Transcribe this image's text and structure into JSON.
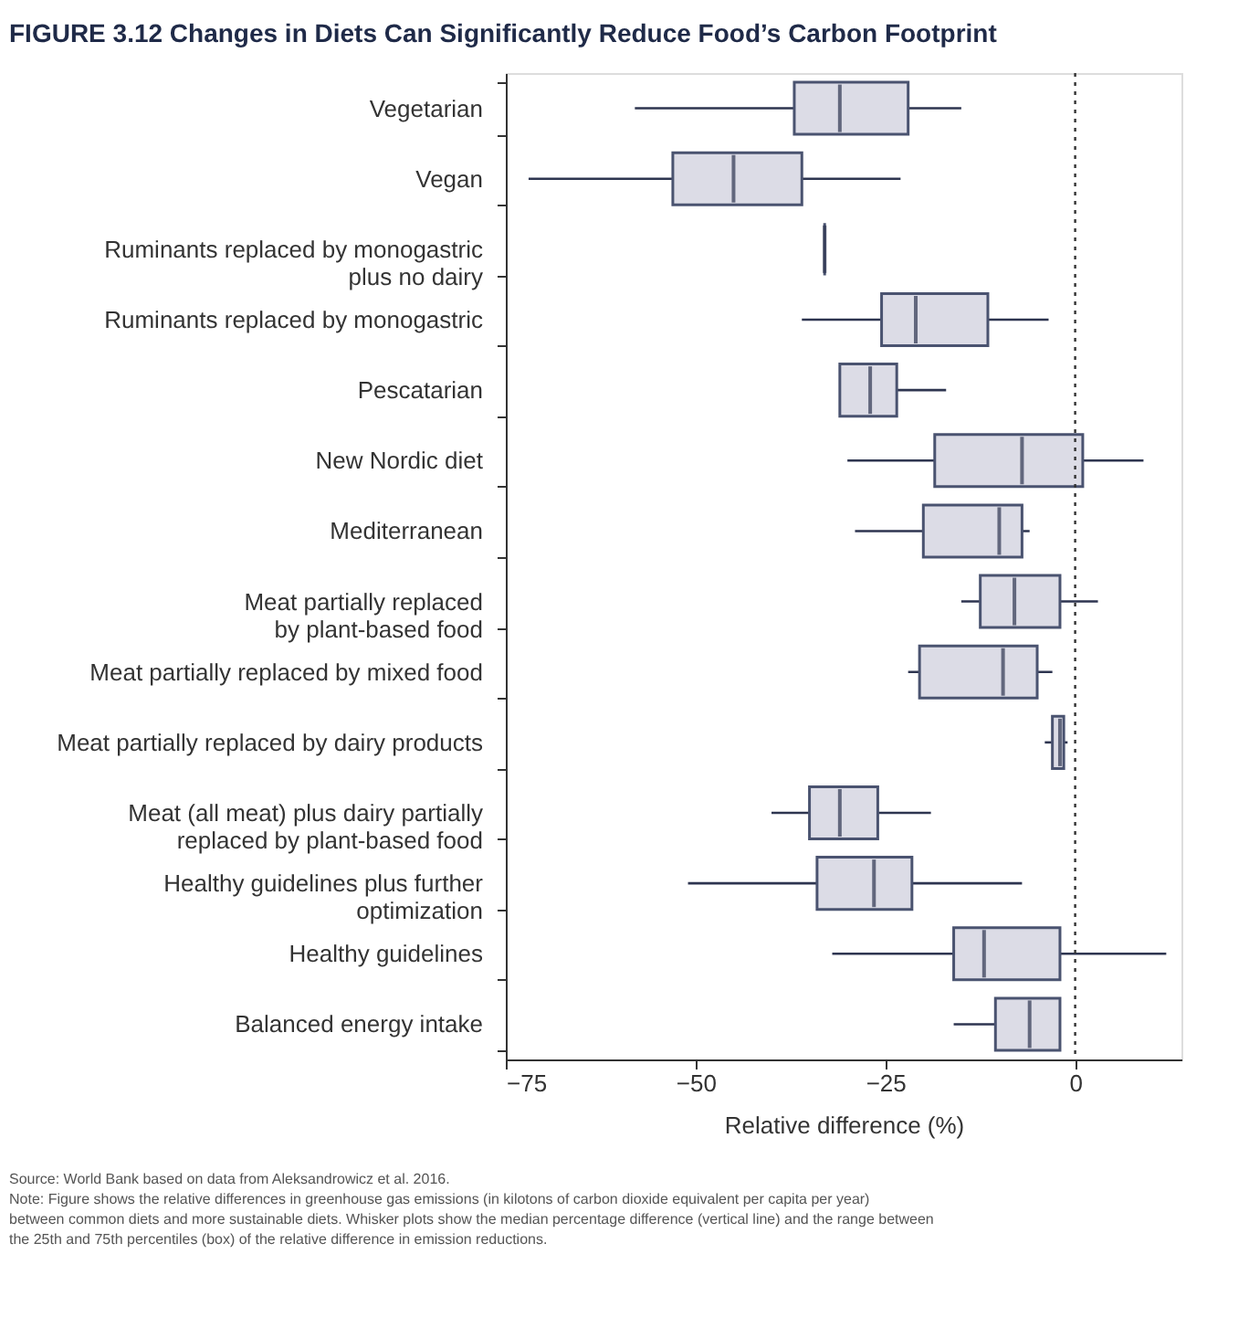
{
  "chart_data": {
    "type": "box",
    "orientation": "horizontal",
    "title": "FIGURE 3.12 Changes in Diets Can Significantly Reduce Food’s Carbon Footprint",
    "xlabel": "Relative difference (%)",
    "categories": [
      "Vegetarian",
      "Vegan",
      "Ruminants replaced by monogastric\nplus no dairy",
      "Ruminants replaced by monogastric",
      "Pescatarian",
      "New Nordic diet",
      "Mediterranean",
      "Meat partially replaced\nby plant-based food",
      "Meat partially replaced by mixed food",
      "Meat partially replaced by dairy products",
      "Meat (all meat) plus dairy partially\nreplaced by plant-based food",
      "Healthy guidelines plus further\noptimization",
      "Healthy guidelines",
      "Balanced energy intake"
    ],
    "boxes": [
      {
        "low": -58,
        "q1": -37,
        "median": -31,
        "q3": -22,
        "high": -15
      },
      {
        "low": -72,
        "q1": -53,
        "median": -45,
        "q3": -36,
        "high": -23
      },
      {
        "low": -33,
        "q1": -33,
        "median": -33,
        "q3": -33,
        "high": -33
      },
      {
        "low": -36,
        "q1": -25.5,
        "median": -21,
        "q3": -11.5,
        "high": -3.5
      },
      {
        "low": -31,
        "q1": -31,
        "median": -27,
        "q3": -23.5,
        "high": -17
      },
      {
        "low": -30,
        "q1": -18.5,
        "median": -7,
        "q3": 1,
        "high": 9
      },
      {
        "low": -29,
        "q1": -20,
        "median": -10,
        "q3": -7,
        "high": -6
      },
      {
        "low": -15,
        "q1": -12.5,
        "median": -8,
        "q3": -2,
        "high": 3
      },
      {
        "low": -22,
        "q1": -20.5,
        "median": -9.5,
        "q3": -5,
        "high": -3
      },
      {
        "low": -4,
        "q1": -3,
        "median": -2,
        "q3": -1.5,
        "high": -1
      },
      {
        "low": -40,
        "q1": -35,
        "median": -31,
        "q3": -26,
        "high": -19
      },
      {
        "low": -51,
        "q1": -34,
        "median": -26.5,
        "q3": -21.5,
        "high": -7
      },
      {
        "low": -32,
        "q1": -16,
        "median": -12,
        "q3": -2,
        "high": 12
      },
      {
        "low": -16,
        "q1": -10.5,
        "median": -6,
        "q3": -2,
        "high": -2
      }
    ],
    "colors": [
      "#dcdce6",
      "#dcdce6",
      "#2e3550",
      "#dcdce6",
      "#dcdce6",
      "#dcdce6",
      "#dcdce6",
      "#dcdce6",
      "#dcdce6",
      "#dcdce6",
      "#dcdce6",
      "#dcdce6",
      "#dcdce6",
      "#dcdce6"
    ],
    "xlim": [
      -75,
      14
    ],
    "xticks": [
      {
        "value": -75,
        "label": "−75"
      },
      {
        "value": -50,
        "label": "−50"
      },
      {
        "value": -25,
        "label": "−25"
      },
      0
    ],
    "ref_lines": [
      {
        "axis": "x",
        "value": 0,
        "line_style": "dotted",
        "color": "#333333"
      }
    ],
    "grid": false,
    "annotations": [
      "Source: World Bank based on data from Aleksandrowicz et al. 2016.",
      "Note: Figure shows the relative differences in greenhouse gas emissions (in kilotons of carbon dioxide equivalent per capita per year) between common diets and more sustainable diets. Whisker plots show the median percentage difference (vertical line) and the range between the 25th and 75th percentiles (box) of the relative difference in emission reductions."
    ]
  }
}
